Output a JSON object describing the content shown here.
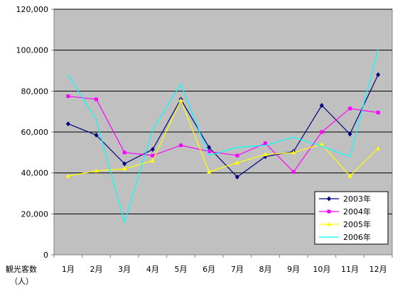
{
  "chart_data": {
    "type": "line",
    "title": "",
    "xlabel": "",
    "ylabel_lines": [
      "観光客数",
      "（人）"
    ],
    "categories": [
      "1月",
      "2月",
      "3月",
      "4月",
      "5月",
      "6月",
      "7月",
      "8月",
      "9月",
      "10月",
      "11月",
      "12月"
    ],
    "ylim": [
      0,
      120000
    ],
    "yticks": [
      0,
      20000,
      40000,
      60000,
      80000,
      100000,
      120000
    ],
    "ytick_labels": [
      "0",
      "20,000",
      "40,000",
      "60,000",
      "80,000",
      "100,000",
      "120,000"
    ],
    "grid": true,
    "legend_position": "bottom-right",
    "plot_background": "#c0c0c0",
    "series": [
      {
        "name": "2003年",
        "color": "#000080",
        "marker": "diamond",
        "values": [
          64000,
          58500,
          44500,
          51500,
          76000,
          52500,
          38000,
          48000,
          50500,
          73000,
          59000,
          88000
        ]
      },
      {
        "name": "2004年",
        "color": "#ff00ff",
        "marker": "square",
        "values": [
          77500,
          76000,
          50000,
          48500,
          53500,
          50500,
          48500,
          54500,
          40500,
          60000,
          71500,
          69500
        ]
      },
      {
        "name": "2005年",
        "color": "#ffff00",
        "marker": "triangle",
        "values": [
          38500,
          41000,
          42000,
          46000,
          75500,
          40500,
          45000,
          49000,
          50000,
          54000,
          38500,
          52000
        ]
      },
      {
        "name": "2006年",
        "color": "#00ffff",
        "marker": "none",
        "values": [
          88000,
          66000,
          16000,
          61000,
          83500,
          48500,
          52500,
          53500,
          57500,
          53000,
          48000,
          100500
        ]
      }
    ]
  }
}
